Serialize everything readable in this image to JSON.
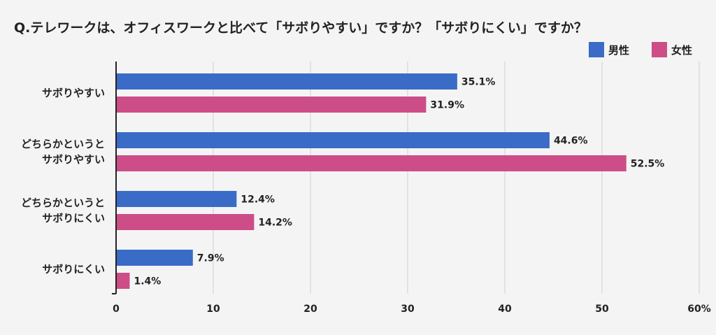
{
  "chart_data": {
    "type": "bar",
    "orientation": "horizontal",
    "title": "Q.テレワークは、オフィスワークと比べて「サボりやすい」ですか？「サボりにくい」ですか？",
    "categories": [
      [
        "サボりやすい"
      ],
      [
        "どちらかというと",
        "サボりやすい"
      ],
      [
        "どちらかというと",
        "サボりにくい"
      ],
      [
        "サボりにくい"
      ]
    ],
    "series": [
      {
        "name": "男性",
        "color": "#3a6bc6",
        "values": [
          35.1,
          44.6,
          12.4,
          7.9
        ],
        "labels": [
          "35.1%",
          "44.6%",
          "12.4%",
          "7.9%"
        ]
      },
      {
        "name": "女性",
        "color": "#cc4d87",
        "values": [
          31.9,
          52.5,
          14.2,
          1.4
        ],
        "labels": [
          "31.9%",
          "52.5%",
          "14.2%",
          "1.4%"
        ]
      }
    ],
    "xlim": [
      0,
      60
    ],
    "xticks": [
      0,
      10,
      20,
      30,
      40,
      50,
      60
    ],
    "xtick_labels": [
      "0",
      "10",
      "20",
      "30",
      "40",
      "50",
      "60%"
    ],
    "grid": true,
    "legend": "top-right"
  }
}
